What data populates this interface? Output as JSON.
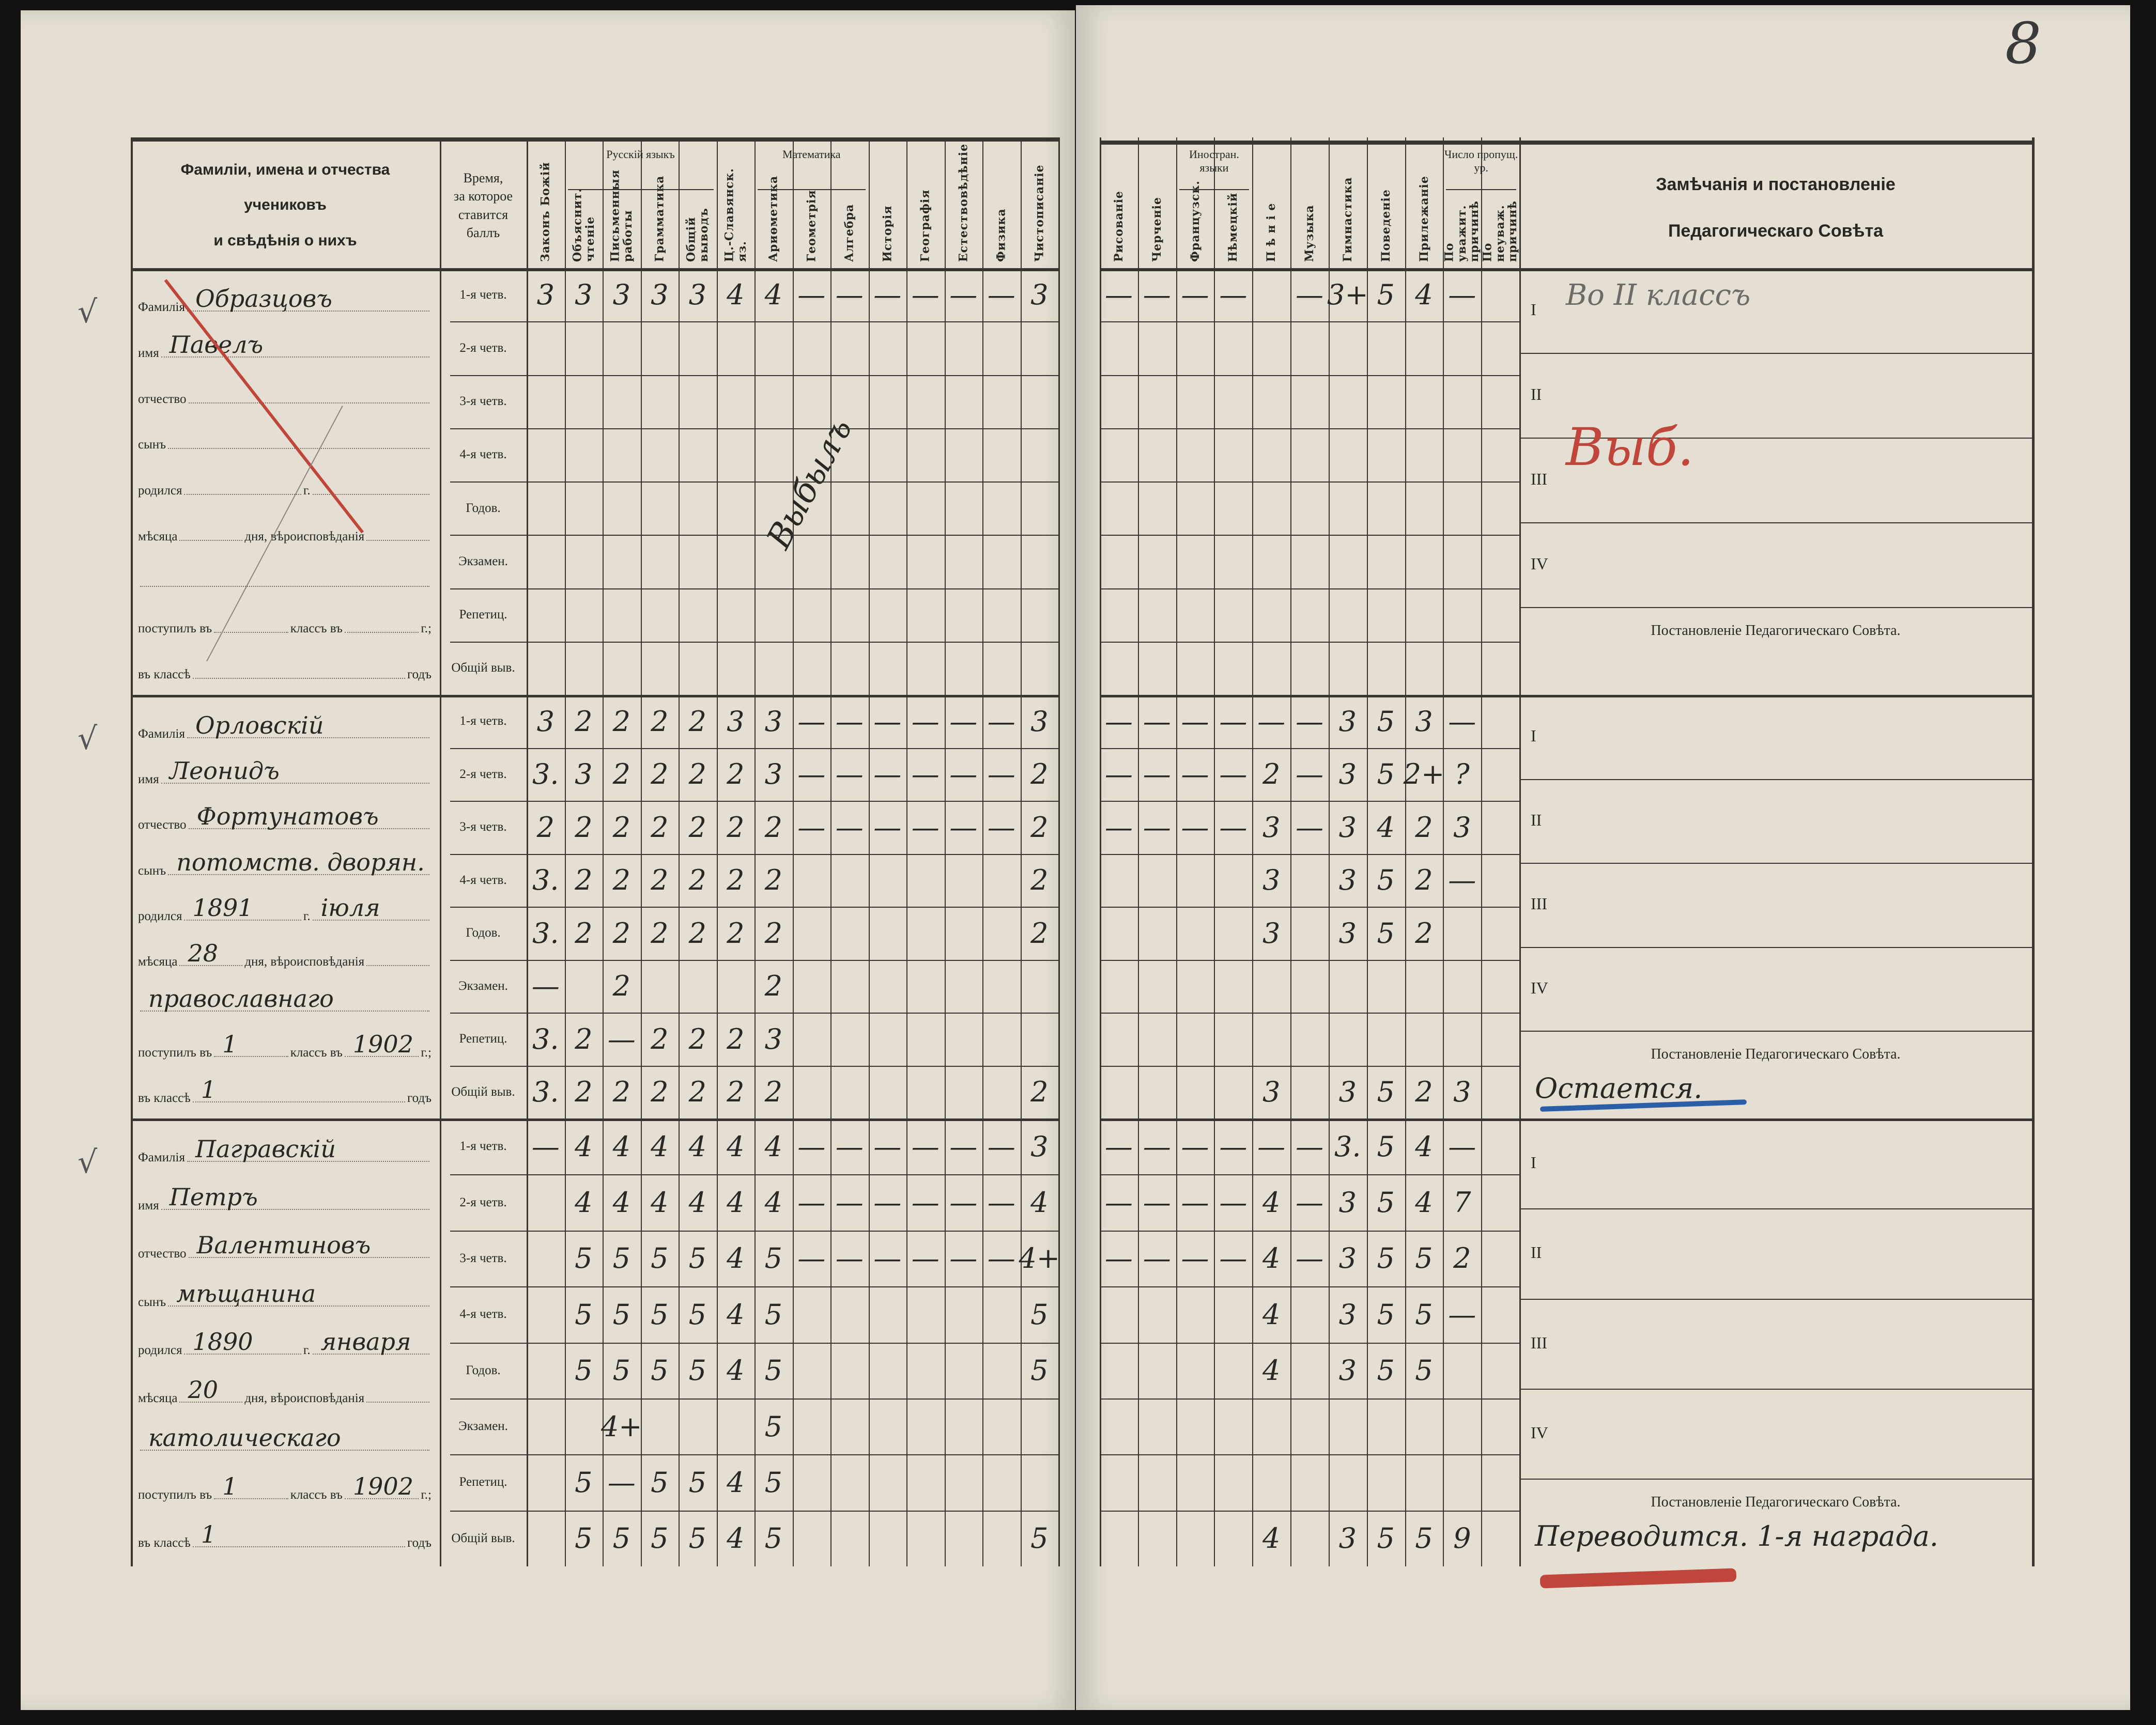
{
  "page_number": "8",
  "colors": {
    "paper": "#e4dfd2",
    "ink": "#2a2622",
    "red_pencil": "#c0453a",
    "blue_pencil": "#2a5fa8",
    "pencil": "#6e6a66"
  },
  "header": {
    "names_title": "Фамиліи, имена и отчества ученикова и свѣдѣнія о нихъ",
    "names_title_lines": [
      "Фамиліи, имена и отчества",
      "учениковъ",
      "и свѣдѣнія о нихъ"
    ],
    "time_title_lines": [
      "Время,",
      "за которое",
      "ставится",
      "баллъ"
    ],
    "groups": {
      "russian": "Русскій языкъ",
      "math": "Математика",
      "foreign": "Иностран. языки",
      "absences": "Число пропущ. ур."
    },
    "subjects": [
      "Законъ Божій",
      "Объяснит. чтеніе",
      "Письменныя работы",
      "Грамматика",
      "Общій выводъ",
      "Ц.-Славянск. яз.",
      "Ариѳметика",
      "Геометрія",
      "Алгебра",
      "Исторія",
      "Географія",
      "Естествовѣдѣніе",
      "Физика",
      "Чистописаніе",
      "Рисованіе",
      "Черченіе",
      "Французск.",
      "Нѣмецкій",
      "П ѣ н і е",
      "Музыка",
      "Гимнастика",
      "Поведеніе",
      "Прилежаніе",
      "По уважит. причинѣ",
      "По неуваж. причинѣ"
    ],
    "remarks_title_lines": [
      "Замѣчанія и постановленіе",
      "Педагогическаго Совѣта"
    ]
  },
  "row_labels": [
    "1-я четв.",
    "2-я четв.",
    "3-я четв.",
    "4-я четв.",
    "Годов.",
    "Экзамен.",
    "Репетиц.",
    "Общій выв."
  ],
  "form_labels": {
    "surname": "Фамилія",
    "name": "имя",
    "patronymic": "отчество",
    "son_of": "сынъ",
    "born": "родился",
    "year_suffix": "г.",
    "month": "мѣсяца",
    "day_religion": "дня, вѣроисповѣданія",
    "entered": "поступилъ въ",
    "class_in": "классъ въ",
    "year_end": "г.;",
    "in_class": "въ классѣ",
    "years": "годъ"
  },
  "quarters_roman": [
    "I",
    "II",
    "III",
    "IV"
  ],
  "decision_label": "Постановленіе Педагогическаго Совѣта.",
  "check_mark": "√",
  "students": [
    {
      "surname": "Образцовъ",
      "name": "Павелъ",
      "patronymic": "",
      "son_of": "",
      "born_year": "",
      "born_month": "",
      "born_day": "",
      "religion": "",
      "entered_class": "",
      "entered_year": "",
      "years_in_class": "",
      "diagonal_note": "Выбылъ",
      "grades": [
        [
          "3",
          "3",
          "3",
          "3",
          "3",
          "4",
          "4",
          "—",
          "—",
          "—",
          "—",
          "—",
          "—",
          "3",
          "—",
          "—",
          "—",
          "—",
          "",
          "—",
          "3+",
          "5",
          "4",
          "—",
          ""
        ],
        [],
        [],
        [],
        [],
        [],
        [],
        []
      ],
      "remarks": {
        "I": "Во II классъ",
        "III": "Выб."
      },
      "decision": ""
    },
    {
      "surname": "Орловскій",
      "name": "Леонидъ",
      "patronymic": "Фортунатовъ",
      "son_of": "потомств. дворян.",
      "born_year": "1891",
      "born_month": "іюля",
      "born_day": "28",
      "religion": "православнаго",
      "entered_class": "1",
      "entered_year": "1902",
      "years_in_class": "1",
      "grades": [
        [
          "3",
          "2",
          "2",
          "2",
          "2",
          "3",
          "3",
          "—",
          "—",
          "—",
          "—",
          "—",
          "—",
          "3",
          "—",
          "—",
          "—",
          "—",
          "—",
          "—",
          "3",
          "5",
          "3",
          "—",
          ""
        ],
        [
          "3.",
          "3",
          "2",
          "2",
          "2",
          "2",
          "3",
          "—",
          "—",
          "—",
          "—",
          "—",
          "—",
          "2",
          "—",
          "—",
          "—",
          "—",
          "2",
          "—",
          "3",
          "5",
          "2+",
          "?",
          ""
        ],
        [
          "2",
          "2",
          "2",
          "2",
          "2",
          "2",
          "2",
          "—",
          "—",
          "—",
          "—",
          "—",
          "—",
          "2",
          "—",
          "—",
          "—",
          "—",
          "3",
          "—",
          "3",
          "4",
          "2",
          "3",
          ""
        ],
        [
          "3.",
          "2",
          "2",
          "2",
          "2",
          "2",
          "2",
          "",
          "",
          "",
          "",
          "",
          "",
          "2",
          "",
          "",
          "",
          "",
          "3",
          "",
          "3",
          "5",
          "2",
          "—",
          ""
        ],
        [
          "3.",
          "2",
          "2",
          "2",
          "2",
          "2",
          "2",
          "",
          "",
          "",
          "",
          "",
          "",
          "2",
          "",
          "",
          "",
          "",
          "3",
          "",
          "3",
          "5",
          "2",
          "",
          ""
        ],
        [
          "—",
          "",
          "2",
          "",
          "",
          "",
          "2",
          "",
          "",
          "",
          "",
          "",
          "",
          "",
          "",
          "",
          "",
          "",
          "",
          "",
          "",
          "",
          "",
          "",
          ""
        ],
        [
          "3.",
          "2",
          "—",
          "2",
          "2",
          "2",
          "3",
          "",
          "",
          "",
          "",
          "",
          "",
          "",
          "",
          "",
          "",
          "",
          "",
          "",
          "",
          "",
          "",
          "",
          ""
        ],
        [
          "3.",
          "2",
          "2",
          "2",
          "2",
          "2",
          "2",
          "",
          "",
          "",
          "",
          "",
          "",
          "2",
          "",
          "",
          "",
          "",
          "3",
          "",
          "3",
          "5",
          "2",
          "3",
          ""
        ]
      ],
      "remarks": {},
      "decision": "Остается."
    },
    {
      "surname": "Пагравскій",
      "name": "Петръ",
      "patronymic": "Валентиновъ",
      "son_of": "мѣщанина",
      "born_year": "1890",
      "born_month": "января",
      "born_day": "20",
      "religion": "католическаго",
      "entered_class": "1",
      "entered_year": "1902",
      "years_in_class": "1",
      "grades": [
        [
          "—",
          "4",
          "4",
          "4",
          "4",
          "4",
          "4",
          "—",
          "—",
          "—",
          "—",
          "—",
          "—",
          "3",
          "—",
          "—",
          "—",
          "—",
          "—",
          "—",
          "3.",
          "5",
          "4",
          "—",
          ""
        ],
        [
          "",
          "4",
          "4",
          "4",
          "4",
          "4",
          "4",
          "—",
          "—",
          "—",
          "—",
          "—",
          "—",
          "4",
          "—",
          "—",
          "—",
          "—",
          "4",
          "—",
          "3",
          "5",
          "4",
          "7",
          ""
        ],
        [
          "",
          "5",
          "5",
          "5",
          "5",
          "4",
          "5",
          "—",
          "—",
          "—",
          "—",
          "—",
          "—",
          "4+",
          "—",
          "—",
          "—",
          "—",
          "4",
          "—",
          "3",
          "5",
          "5",
          "2",
          ""
        ],
        [
          "",
          "5",
          "5",
          "5",
          "5",
          "4",
          "5",
          "",
          "",
          "",
          "",
          "",
          "",
          "5",
          "",
          "",
          "",
          "",
          "4",
          "",
          "3",
          "5",
          "5",
          "—",
          ""
        ],
        [
          "",
          "5",
          "5",
          "5",
          "5",
          "4",
          "5",
          "",
          "",
          "",
          "",
          "",
          "",
          "5",
          "",
          "",
          "",
          "",
          "4",
          "",
          "3",
          "5",
          "5",
          "",
          ""
        ],
        [
          "",
          "",
          "4+",
          "",
          "",
          "",
          "5",
          "",
          "",
          "",
          "",
          "",
          "",
          "",
          "",
          "",
          "",
          "",
          "",
          "",
          "",
          "",
          "",
          "",
          ""
        ],
        [
          "",
          "5",
          "—",
          "5",
          "5",
          "4",
          "5",
          "",
          "",
          "",
          "",
          "",
          "",
          "",
          "",
          "",
          "",
          "",
          "",
          "",
          "",
          "",
          "",
          "",
          ""
        ],
        [
          "",
          "5",
          "5",
          "5",
          "5",
          "4",
          "5",
          "",
          "",
          "",
          "",
          "",
          "",
          "5",
          "",
          "",
          "",
          "",
          "4",
          "",
          "3",
          "5",
          "5",
          "9",
          ""
        ]
      ],
      "remarks": {},
      "decision": "Переводится. 1-я награда."
    }
  ]
}
